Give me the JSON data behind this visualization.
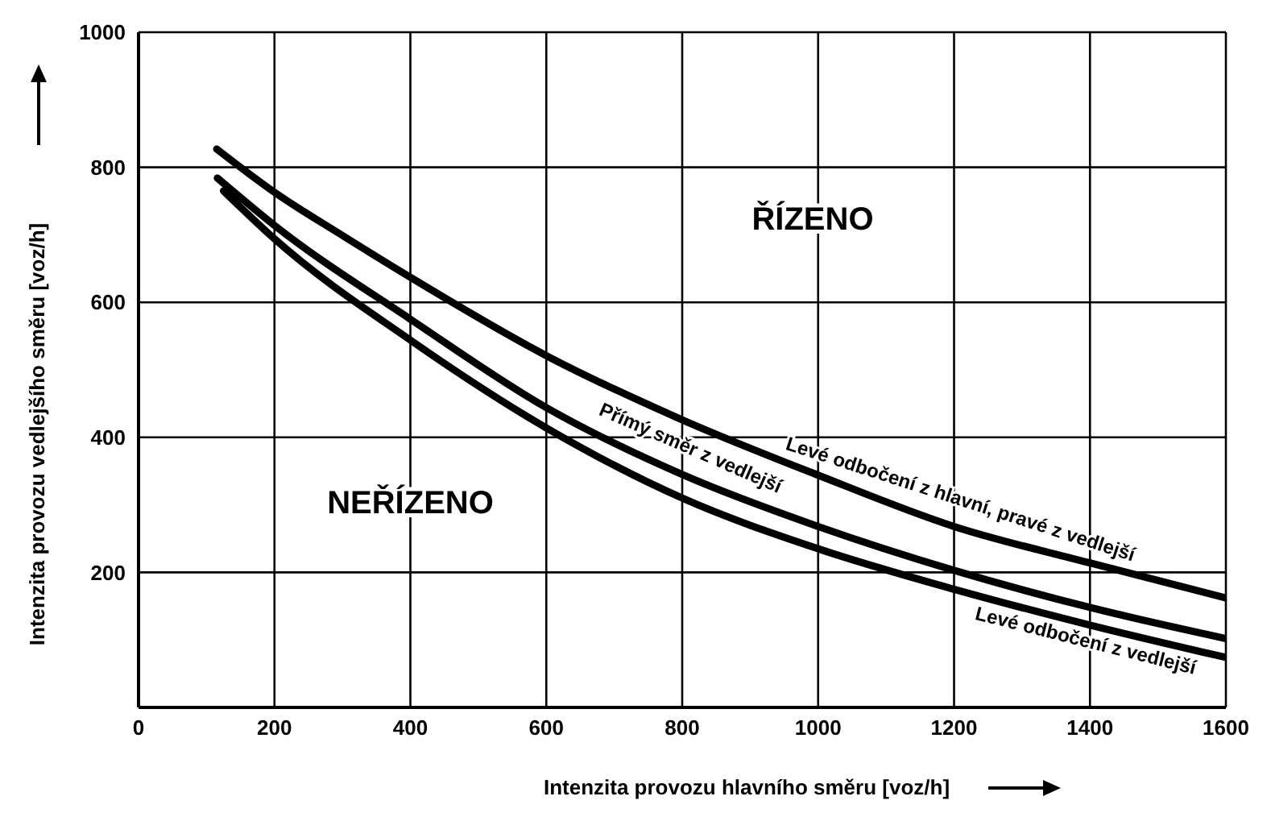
{
  "chart_data": {
    "type": "line",
    "xlabel": "Intenzita provozu hlavního směru [voz/h]",
    "ylabel": "Intenzita provozu vedlejšího směru [voz/h]",
    "xlim": [
      0,
      1600
    ],
    "xticks": [
      0,
      200,
      400,
      600,
      800,
      1000,
      1200,
      1400,
      1600
    ],
    "ylim": [
      0,
      1000
    ],
    "yticks": [
      200,
      400,
      600,
      800,
      1000
    ],
    "grid": true,
    "legend": false,
    "marker": "none",
    "line_style": "solid",
    "series": [
      {
        "name": "Levé odbočení z hlavní, pravé z vedlejší",
        "color": "#000000",
        "x": [
          115,
          200,
          300,
          400,
          600,
          800,
          1000,
          1200,
          1400,
          1600
        ],
        "values": [
          827,
          763,
          699,
          637,
          521,
          426,
          344,
          268,
          214,
          162
        ]
      },
      {
        "name": "Přímý směr z vedlejší",
        "color": "#000000",
        "x": [
          116,
          200,
          400,
          600,
          800,
          1000,
          1200,
          1400,
          1600
        ],
        "values": [
          784,
          714,
          575,
          444,
          345,
          268,
          203,
          148,
          102
        ]
      },
      {
        "name": "Levé odbočení z vedlejší",
        "color": "#000000",
        "x": [
          125,
          200,
          400,
          600,
          800,
          1000,
          1200,
          1400,
          1600
        ],
        "values": [
          765,
          694,
          544,
          414,
          310,
          235,
          175,
          122,
          74
        ]
      }
    ],
    "annotations": [
      "ŘÍZENO",
      "NEŘÍZENO"
    ]
  }
}
